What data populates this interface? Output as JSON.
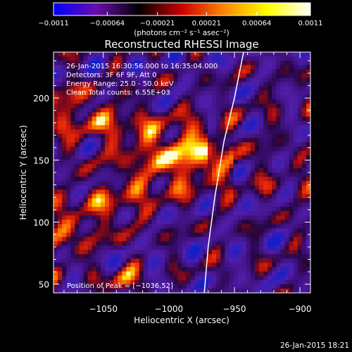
{
  "chart_data": {
    "type": "heatmap",
    "title": "Reconstructed RHESSI Image",
    "xlabel": "Heliocentric X (arcsec)",
    "ylabel": "Heliocentric Y (arcsec)",
    "xlim": [
      -1088,
      -892
    ],
    "ylim": [
      43,
      237
    ],
    "xticks": [
      -1050,
      -1000,
      -950,
      -900
    ],
    "xtick_labels": [
      "−1050",
      "−1000",
      "−950",
      "−900"
    ],
    "yticks": [
      50,
      100,
      150,
      200
    ],
    "ytick_labels": [
      "50",
      "100",
      "150",
      "200"
    ],
    "colorbar": {
      "min": -0.0011,
      "max": 0.0011,
      "ticks": [
        -0.0011,
        -0.00064,
        -0.00021,
        0.00021,
        0.00064,
        0.0011
      ],
      "tick_labels": [
        "−0.0011",
        "−0.00064",
        "−0.00021",
        "0.00021",
        "0.00064",
        "0.0011"
      ],
      "unit_label": "(photons cm⁻² s⁻¹ asec⁻²)",
      "colors": [
        "#0000ff",
        "#6a0dad",
        "#000000",
        "#cc0000",
        "#ff8800",
        "#ffff00",
        "#ffffff"
      ]
    },
    "info_lines": [
      "26-Jan-2015 16:30:56.000 to 16:35:04.000",
      "Detectors: 3F 6F 9F, Att 0",
      "Energy Range: 25.0 - 50.0 keV",
      "Clean    Total counts: 6.55E+03"
    ],
    "peak_label": "Position of Peak = [−1036,52]",
    "peak_position": [
      -1036,
      52
    ],
    "limb_curve": [
      [
        -973,
        43
      ],
      [
        -970,
        80
      ],
      [
        -965,
        120
      ],
      [
        -958,
        165
      ],
      [
        -950,
        200
      ],
      [
        -943,
        237
      ]
    ],
    "limb_color": "#ffffff"
  },
  "footer_timestamp": "26-Jan-2015 18:21"
}
